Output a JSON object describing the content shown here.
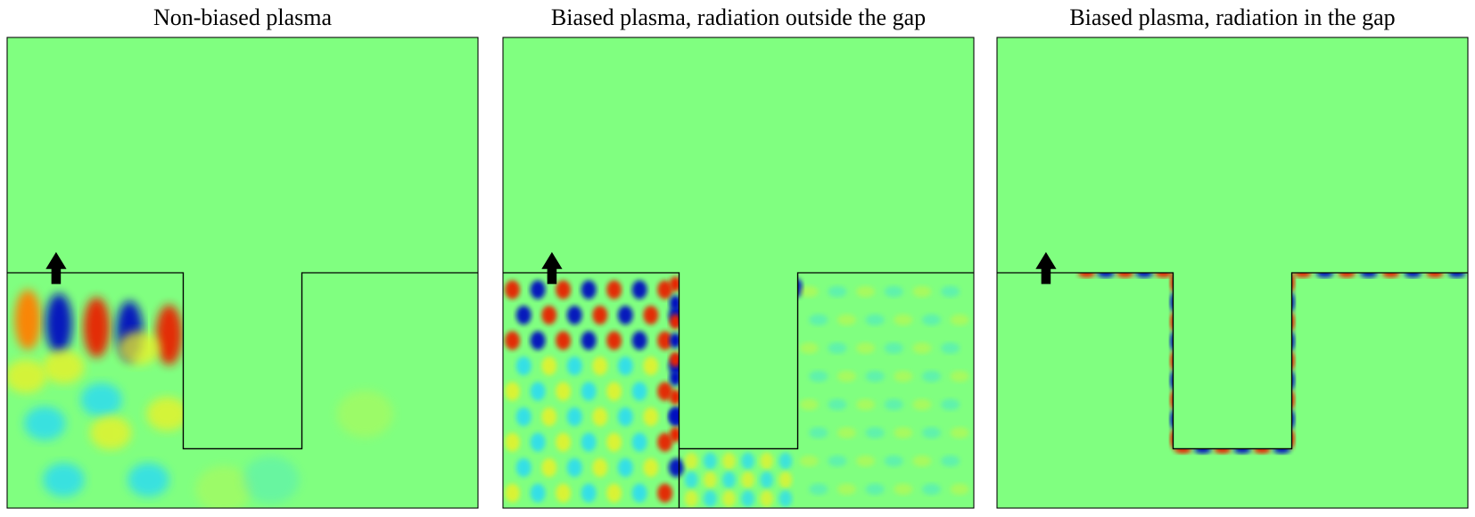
{
  "panels": [
    {
      "title": "Non-biased plasma"
    },
    {
      "title": "Biased plasma, radiation outside the gap"
    },
    {
      "title": "Biased plasma, radiation in the gap"
    }
  ]
}
